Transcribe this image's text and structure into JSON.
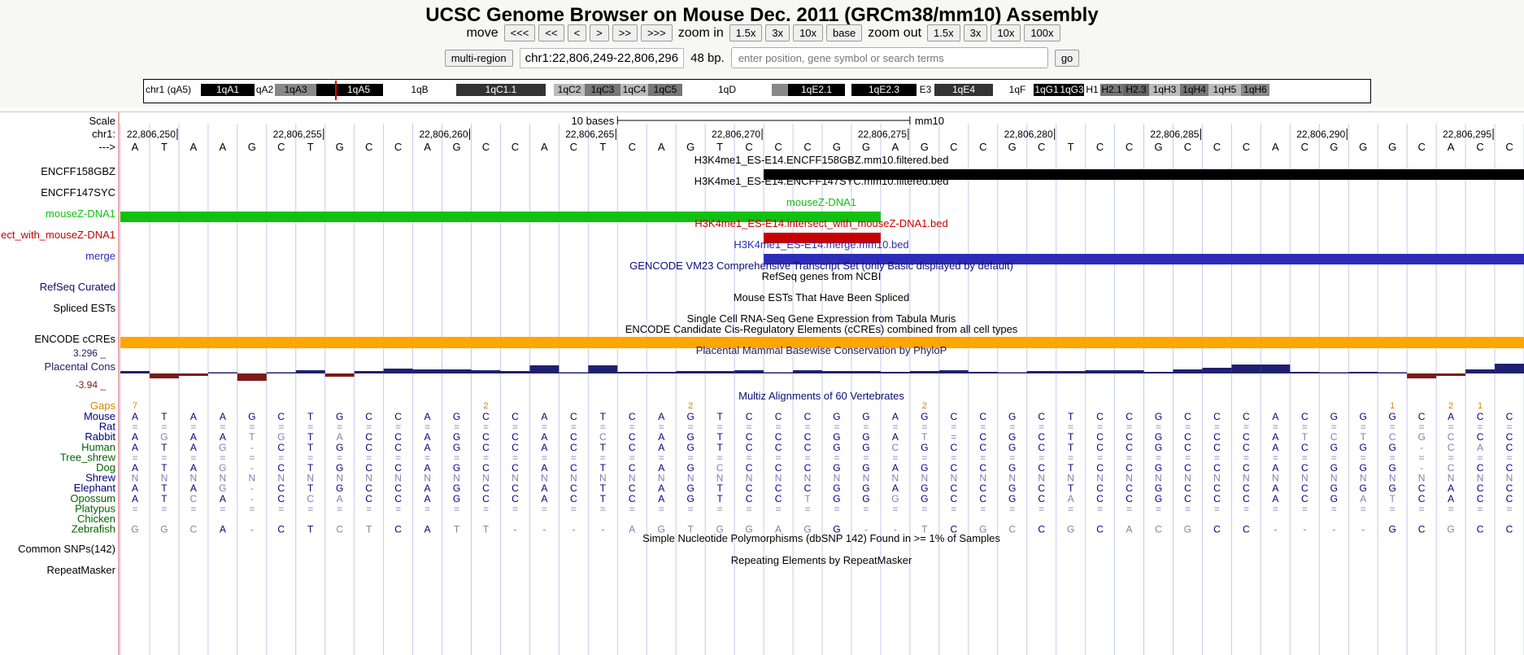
{
  "title": "UCSC Genome Browser on Mouse Dec. 2011 (GRCm38/mm10) Assembly",
  "nav": {
    "move_label": "move",
    "move_buttons": [
      "<<<",
      "<<",
      "<",
      ">",
      ">>",
      ">>>"
    ],
    "zoom_in_label": "zoom in",
    "zoom_in_buttons": [
      "1.5x",
      "3x",
      "10x",
      "base"
    ],
    "zoom_out_label": "zoom out",
    "zoom_out_buttons": [
      "1.5x",
      "3x",
      "10x",
      "100x"
    ]
  },
  "position_bar": {
    "multi_region_label": "multi-region",
    "position": "chr1:22,806,249-22,806,296",
    "size": "48 bp.",
    "search_placeholder": "enter position, gene symbol or search terms",
    "go_label": "go"
  },
  "ideogram": {
    "chrom_label": "chr1 (qA5)",
    "bands": [
      {
        "label": "1qA1",
        "bg": "#000000",
        "fg": "#ffffff"
      },
      {
        "label": "qA2",
        "bg": "#ffffff",
        "fg": "#000000"
      },
      {
        "label": "1qA3",
        "bg": "#888888",
        "fg": "#000000"
      },
      {
        "label": "",
        "bg": "#000000",
        "fg": "#ffffff"
      },
      {
        "label": "1qA5",
        "bg": "#000000",
        "fg": "#ffffff"
      },
      {
        "label": "1qB",
        "bg": "#ffffff",
        "fg": "#000000"
      },
      {
        "label": "1qC1.1",
        "bg": "#333333",
        "fg": "#ffffff"
      },
      {
        "label": "",
        "bg": "#ffffff",
        "fg": "#000000"
      },
      {
        "label": "1qC2",
        "bg": "#bbbbbb",
        "fg": "#000000"
      },
      {
        "label": "1qC3",
        "bg": "#777777",
        "fg": "#000000"
      },
      {
        "label": "1qC4",
        "bg": "#bbbbbb",
        "fg": "#000000"
      },
      {
        "label": "1qC5",
        "bg": "#777777",
        "fg": "#000000"
      },
      {
        "label": "1qD",
        "bg": "#ffffff",
        "fg": "#000000"
      },
      {
        "label": "",
        "bg": "#888888",
        "fg": "#000000"
      },
      {
        "label": "1qE2.1",
        "bg": "#000000",
        "fg": "#ffffff"
      },
      {
        "label": "",
        "bg": "#ffffff",
        "fg": "#000000"
      },
      {
        "label": "1qE2.3",
        "bg": "#000000",
        "fg": "#ffffff"
      },
      {
        "label": "E3",
        "bg": "#ffffff",
        "fg": "#000000"
      },
      {
        "label": "1qE4",
        "bg": "#333333",
        "fg": "#ffffff"
      },
      {
        "label": "",
        "bg": "#ffffff",
        "fg": "#000000"
      },
      {
        "label": "1qF",
        "bg": "#ffffff",
        "fg": "#000000"
      },
      {
        "label": "1qG1",
        "bg": "#000000",
        "fg": "#ffffff"
      },
      {
        "label": "1qG3",
        "bg": "#000000",
        "fg": "#ffffff"
      },
      {
        "label": "H1",
        "bg": "#ffffff",
        "fg": "#000000"
      },
      {
        "label": "H2.1",
        "bg": "#777777",
        "fg": "#000000"
      },
      {
        "label": "H2.3",
        "bg": "#666666",
        "fg": "#000000"
      },
      {
        "label": "1qH3",
        "bg": "#bbbbbb",
        "fg": "#000000"
      },
      {
        "label": "1qH4",
        "bg": "#777777",
        "fg": "#000000"
      },
      {
        "label": "1qH5",
        "bg": "#bbbbbb",
        "fg": "#000000"
      },
      {
        "label": "1qH6",
        "bg": "#888888",
        "fg": "#000000"
      }
    ]
  },
  "ruler": {
    "scale_label": "Scale",
    "chrom_label": "chr1:",
    "strand_label": "--->",
    "scale_bar_text": "10 bases",
    "assembly": "mm10",
    "ticks": [
      "22,806,250",
      "22,806,255",
      "22,806,260",
      "22,806,265",
      "22,806,270",
      "22,806,275",
      "22,806,280",
      "22,806,285",
      "22,806,290",
      "22,806,295"
    ]
  },
  "reference_sequence": "ATAAGCTGCCAGCCACTCAGTCCCGGAGCCGCTCCGCCCACGGGCACC",
  "tracks": {
    "encff158gbz": {
      "side": "ENCFF158GBZ",
      "title": "H3K4me1_ES-E14.ENCFF158GBZ.mm10.filtered.bed",
      "color": "#000000"
    },
    "encff147syc": {
      "side": "ENCFF147SYC",
      "title": "H3K4me1_ES-E14.ENCFF147SYC.mm10.filtered.bed",
      "color": "#000000"
    },
    "mousez": {
      "side": "mouseZ-DNA1",
      "title": "mouseZ-DNA1",
      "color": "#12c012"
    },
    "intersect": {
      "side": "ect_with_mouseZ-DNA1",
      "title": "H3K4me1_ES-E14.intersect_with_mouseZ-DNA1.bed",
      "color": "#c80000"
    },
    "merge": {
      "side": "merge",
      "title": "H3K4me1_ES-E14.merge.mm10.bed",
      "color": "#2c2cb8"
    },
    "gencode": {
      "title": "GENCODE VM23 Comprehensive Transcript Set (only Basic displayed by default)",
      "color": "#0c0c78"
    },
    "refseq": {
      "side": "RefSeq Curated",
      "title": "RefSeq genes from NCBI",
      "color": "#0c0c78"
    },
    "ests": {
      "side": "Spliced ESTs",
      "title": "Mouse ESTs That Have Been Spliced",
      "color": "#000000"
    },
    "tabula": {
      "title": "Single Cell RNA-Seq Gene Expression from Tabula Muris",
      "color": "#000000"
    },
    "ccres": {
      "side": "ENCODE cCREs",
      "title": "ENCODE Candidate Cis-Regulatory Elements (cCREs) combined from all cell types",
      "color": "#ffa500"
    },
    "cons": {
      "side": "Placental Cons",
      "title": "Placental Mammal Basewise Conservation by PhyloP",
      "max": "3.296 _",
      "min": "-3.94 _",
      "pos_color": "#202070",
      "neg_color": "#7a1a1a"
    },
    "multiz": {
      "title": "Multiz Alignments of 60 Vertebrates",
      "gaps_label": "Gaps",
      "gap_color": "#d28800"
    },
    "snps": {
      "side": "Common SNPs(142)",
      "title": "Simple Nucleotide Polymorphisms (dbSNP 142) Found in >= 1% of Samples",
      "color": "#000000"
    },
    "rmsk": {
      "side": "RepeatMasker",
      "title": "Repeating Elements by RepeatMasker",
      "color": "#000000"
    }
  },
  "cons_values": [
    0.3,
    -0.6,
    -0.3,
    0,
    -0.9,
    0.1,
    0.4,
    -0.4,
    0.3,
    0.6,
    0.5,
    0.5,
    0.4,
    0.3,
    1.0,
    0,
    1.0,
    0.2,
    0.2,
    0.3,
    0.3,
    0.4,
    0,
    0.4,
    0.3,
    0.3,
    0.2,
    0.3,
    0.4,
    0.2,
    0,
    0.3,
    0.3,
    0.4,
    0.4,
    0.2,
    0.5,
    0.7,
    1.1,
    1.1,
    0.2,
    0,
    0.2,
    0,
    -0.6,
    -0.3,
    0.5,
    1.2
  ],
  "gap_markers": [
    {
      "col": 0.5,
      "text": "7"
    },
    {
      "col": 12.5,
      "text": "2"
    },
    {
      "col": 19.5,
      "text": "2"
    },
    {
      "col": 27.5,
      "text": "2"
    },
    {
      "col": 43.5,
      "text": "1"
    },
    {
      "col": 45.5,
      "text": "2"
    },
    {
      "col": 46.5,
      "text": "1"
    }
  ],
  "species": [
    {
      "name": "Mouse",
      "color": "#000080",
      "seq": "ATAAGCTGCCAGCCACTCAGTCCCGGAGCCGCTCCGCCCACGGGCACC"
    },
    {
      "name": "Rat",
      "color": "#000080",
      "seq": "================================================"
    },
    {
      "name": "Rabbit",
      "color": "#000080",
      "seq": "AGAATGTACCAGCCACCCAGTCCCGGAT=CGCTCCGCCCATCTCGCCC"
    },
    {
      "name": "Human",
      "color": "#006400",
      "seq": "ATAG-CTGCCAGCCACTCAGTCCCGGCGCCGCTCCGCCCACGGG-CAC"
    },
    {
      "name": "Tree_shrew",
      "color": "#006400",
      "seq": "================================================"
    },
    {
      "name": "Dog",
      "color": "#006400",
      "seq": "ATAG-CTGCCAGCCACTCAGCCCCGGAGCCGCTCCGCCCACGGG-CCC"
    },
    {
      "name": "Shrew",
      "color": "#000080",
      "seq": "NNNNNNNNNNNNNNNNNNNNNNNNNNNNNNNNNNNNNNNNNNNNNNNN"
    },
    {
      "name": "Elephant",
      "color": "#000080",
      "seq": "ATAG-CTGCCAGCCACTCAGTCCCGGAGCCGCTCCGCCCACGGGCACC"
    },
    {
      "name": "Opossum",
      "color": "#006400",
      "seq": "ATCA-CCACCAGCCACTCAGTCCTGGGGCCGCACCGCCCACGATCACC"
    },
    {
      "name": "Platypus",
      "color": "#006400",
      "seq": "================================================"
    },
    {
      "name": "Chicken",
      "color": "#006400",
      "seq": "                                                "
    },
    {
      "name": "Zebrafish",
      "color": "#006400",
      "seq": "GGCA-CTCTCATT----AGTGGAGG--TCGCCGCACGCC----GCGCC"
    }
  ],
  "colors": {
    "sidebar_border": "#e05050",
    "grid_line": "#c8c8f0",
    "base_text": "#000080",
    "dim_text": "#8080b0"
  }
}
